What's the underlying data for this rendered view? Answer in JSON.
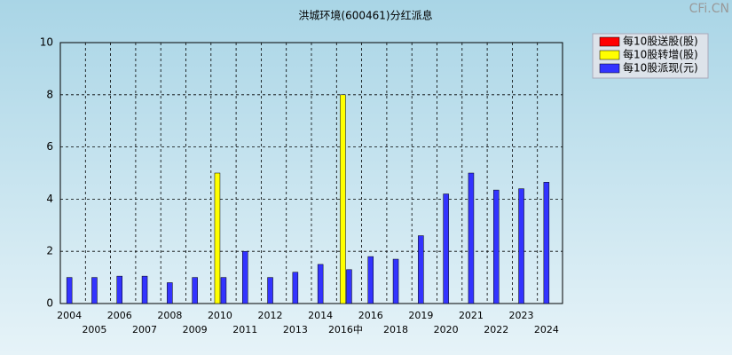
{
  "chart_data": {
    "type": "bar",
    "title": "洪城环境(600461)分红派息",
    "watermark": "CFi.CN",
    "categories": [
      "2004",
      "2005",
      "2006",
      "2007",
      "2008",
      "2009",
      "2010",
      "2011",
      "2012",
      "2013",
      "2014",
      "2016中",
      "2016",
      "2018",
      "2019",
      "2020",
      "2021",
      "2022",
      "2023",
      "2024"
    ],
    "series": [
      {
        "name": "每10股送股(股)",
        "color": "#ff0000",
        "values": [
          null,
          null,
          null,
          null,
          null,
          null,
          null,
          null,
          null,
          null,
          null,
          null,
          null,
          null,
          null,
          null,
          null,
          null,
          null,
          null
        ]
      },
      {
        "name": "每10股转增(股)",
        "color": "#ffff00",
        "values": [
          null,
          null,
          null,
          null,
          null,
          null,
          5,
          null,
          null,
          null,
          null,
          8,
          null,
          null,
          null,
          null,
          null,
          null,
          null,
          null
        ]
      },
      {
        "name": "每10股派现(元)",
        "color": "#3333ff",
        "values": [
          1,
          1,
          1.05,
          1.05,
          0.8,
          1,
          1,
          2,
          1,
          1.2,
          1.5,
          1.3,
          1.8,
          1.7,
          2.6,
          4.2,
          5,
          4.35,
          4.4,
          4.65
        ]
      }
    ],
    "ylim": [
      0,
      10
    ],
    "yticks": [
      0,
      2,
      4,
      6,
      8,
      10
    ],
    "grid": true,
    "legend": "top-right"
  }
}
